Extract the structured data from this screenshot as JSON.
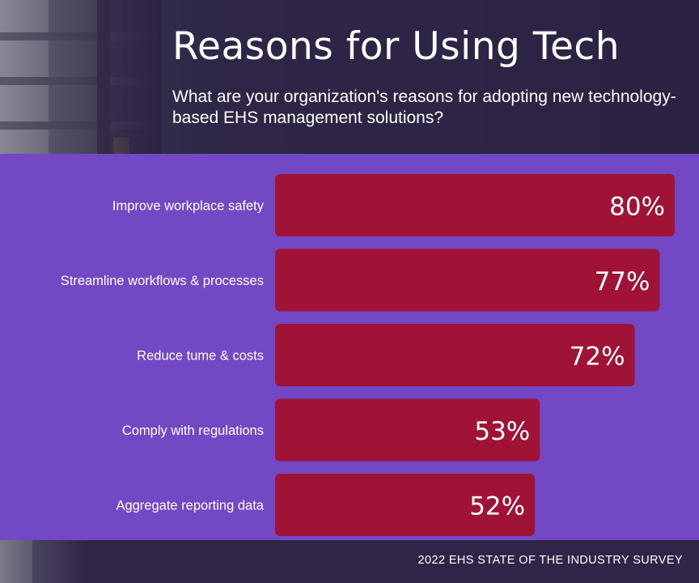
{
  "title": "Reasons for Using Tech",
  "subtitle": "What are your organization's reasons for adopting new technology-based EHS management solutions?",
  "source": "2022 EHS STATE OF THE INDUSTRY SURVEY",
  "colors": {
    "header_bg": "#2c2244",
    "panel_bg": "#7348c4",
    "bar": "#a01236",
    "text": "#ffffff"
  },
  "chart_data": {
    "type": "bar",
    "orientation": "horizontal",
    "categories": [
      "Improve workplace safety",
      "Streamline workflows & processes",
      "Reduce tume & costs",
      "Comply with regulations",
      "Aggregate reporting data"
    ],
    "values": [
      80,
      77,
      72,
      53,
      52
    ],
    "value_labels": [
      "80%",
      "77%",
      "72%",
      "53%",
      "52%"
    ],
    "unit": "%",
    "xlim": [
      0,
      80
    ],
    "grid": false,
    "legend": "none"
  }
}
